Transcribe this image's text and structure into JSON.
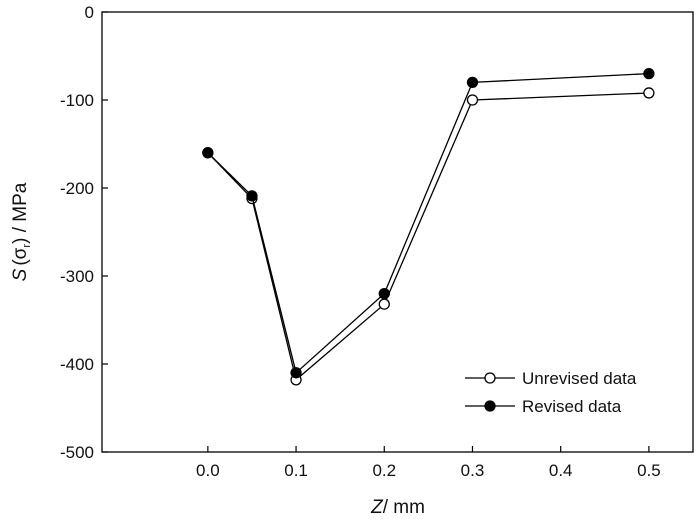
{
  "chart_data": {
    "type": "line",
    "title": "",
    "xlabel": {
      "symbol": "Z",
      "unit_text": "/ mm"
    },
    "ylabel": {
      "symbol": "S",
      "paren_open": "(",
      "sigma": "σ",
      "subscript": "r",
      "paren_close": ")",
      "unit_text": " / MPa"
    },
    "xlim": [
      -0.12,
      0.55
    ],
    "ylim": [
      -500,
      0
    ],
    "xticks": [
      0.0,
      0.1,
      0.2,
      0.3,
      0.4,
      0.5
    ],
    "xtick_labels": [
      "0.0",
      "0.1",
      "0.2",
      "0.3",
      "0.4",
      "0.5"
    ],
    "yticks": [
      0,
      -100,
      -200,
      -300,
      -400,
      -500
    ],
    "ytick_labels": [
      "0",
      "-100",
      "-200",
      "-300",
      "-400",
      "-500"
    ],
    "grid": false,
    "legend_position": "bottom-right",
    "series": [
      {
        "name": "Unrevised data",
        "marker": "open-circle",
        "color": "#000000",
        "x": [
          0.0,
          0.05,
          0.1,
          0.2,
          0.3,
          0.5
        ],
        "y": [
          -160,
          -212,
          -418,
          -332,
          -100,
          -92
        ]
      },
      {
        "name": "Revised data",
        "marker": "filled-circle",
        "color": "#000000",
        "x": [
          0.0,
          0.05,
          0.1,
          0.2,
          0.3,
          0.5
        ],
        "y": [
          -160,
          -209,
          -410,
          -320,
          -80,
          -70
        ]
      }
    ]
  }
}
